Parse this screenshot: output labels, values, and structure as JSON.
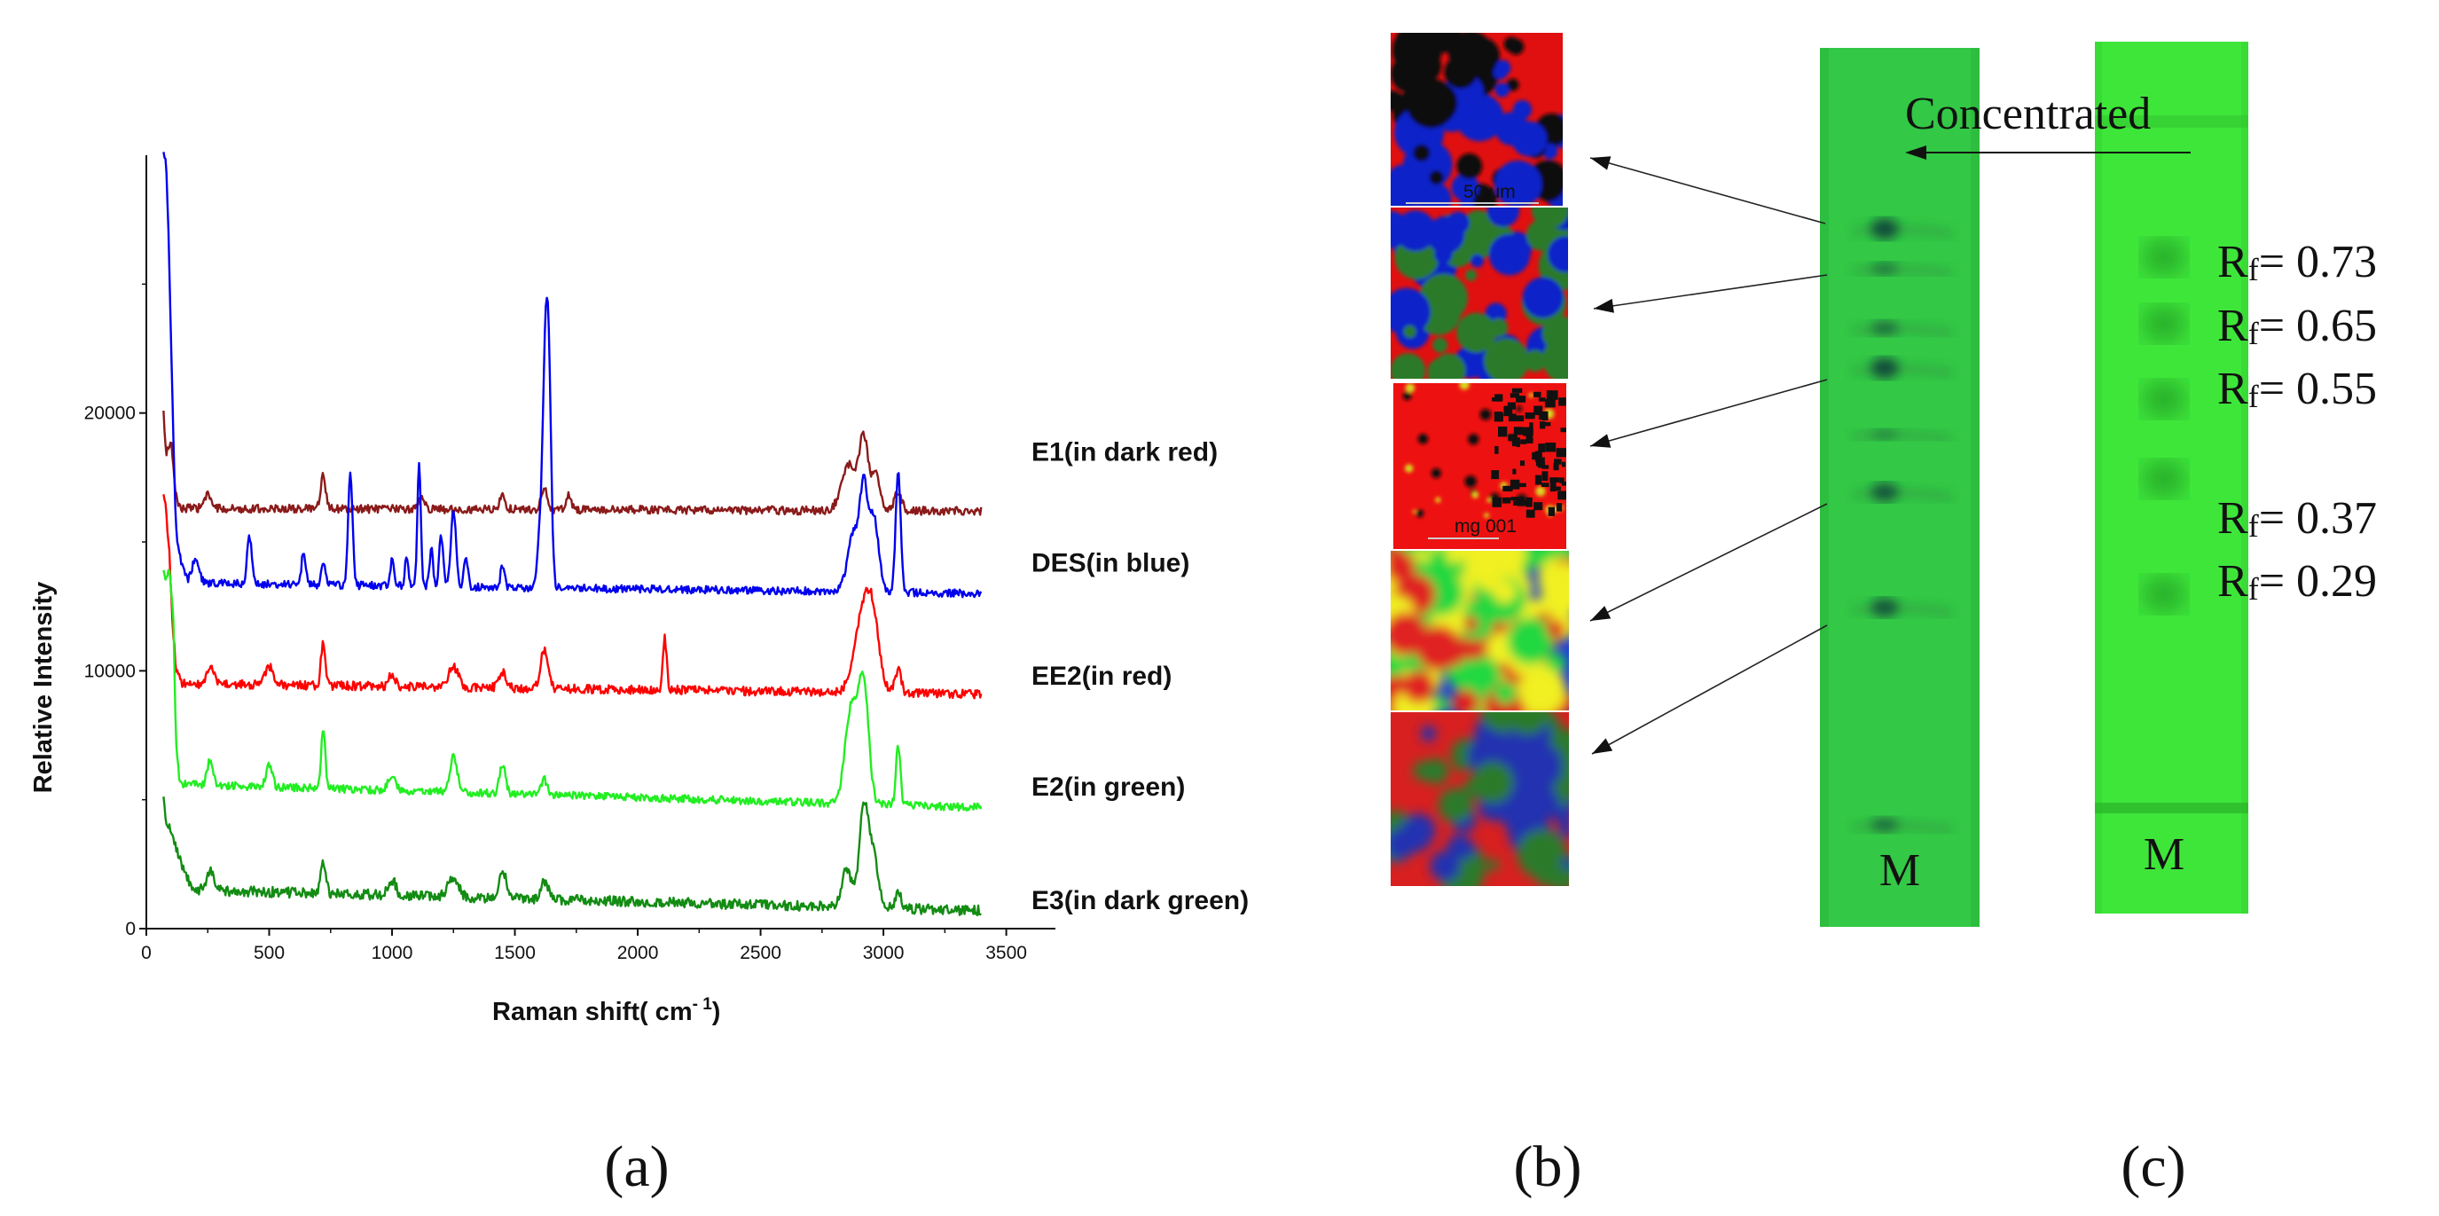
{
  "chart_data": [
    {
      "type": "line",
      "panel_label": "(a)",
      "xlabel": "Raman shift( cm⁻¹)",
      "xlabel_main": "Raman shift(  cm",
      "xlabel_sup": "- 1",
      "xlabel_close": ")",
      "ylabel": "Relative Intensity",
      "xlim": [
        0,
        3700
      ],
      "ylim": [
        0,
        30000
      ],
      "xticks": [
        "0",
        "500",
        "1000",
        "1500",
        "2000",
        "2500",
        "3000",
        "3500"
      ],
      "xtick_values": [
        0,
        500,
        1000,
        1500,
        2000,
        2500,
        3000,
        3500
      ],
      "yticks": [
        "0",
        "10000",
        "20000"
      ],
      "ytick_values": [
        0,
        10000,
        20000
      ],
      "grid": false,
      "series": [
        {
          "name": "E1(in dark red)",
          "color": "#8b1a1a",
          "label_at": 18500,
          "baseline": 16200,
          "noise": 160,
          "points": [
            [
              70,
              20000
            ],
            [
              80,
              18400
            ],
            [
              100,
              18900
            ],
            [
              120,
              16800
            ],
            [
              140,
              16300
            ],
            [
              3400,
              16200
            ]
          ],
          "peaks": [
            [
              250,
              500,
              15
            ],
            [
              720,
              1300,
              10
            ],
            [
              1120,
              500,
              12
            ],
            [
              1450,
              500,
              12
            ],
            [
              1620,
              800,
              12
            ],
            [
              1720,
              600,
              10
            ],
            [
              2860,
              1800,
              30
            ],
            [
              2920,
              2700,
              18
            ],
            [
              2970,
              1400,
              18
            ],
            [
              3060,
              700,
              15
            ]
          ]
        },
        {
          "name": "DES(in blue)",
          "color": "#0000ee",
          "label_at": 14200,
          "baseline": 13000,
          "noise": 150,
          "points": [
            [
              70,
              30000
            ],
            [
              80,
              29900
            ],
            [
              90,
              27000
            ],
            [
              105,
              21000
            ],
            [
              120,
              15500
            ],
            [
              140,
              14300
            ],
            [
              170,
              13400
            ],
            [
              3400,
              13000
            ]
          ],
          "peaks": [
            [
              200,
              900,
              15
            ],
            [
              420,
              1800,
              10
            ],
            [
              640,
              1300,
              8
            ],
            [
              720,
              900,
              8
            ],
            [
              830,
              4300,
              9
            ],
            [
              1000,
              1000,
              7
            ],
            [
              1060,
              1200,
              7
            ],
            [
              1110,
              4900,
              7
            ],
            [
              1160,
              1400,
              7
            ],
            [
              1200,
              2000,
              8
            ],
            [
              1250,
              3000,
              10
            ],
            [
              1300,
              1200,
              8
            ],
            [
              1450,
              900,
              8
            ],
            [
              1600,
              1500,
              10
            ],
            [
              1625,
              9000,
              12
            ],
            [
              1640,
              5000,
              10
            ],
            [
              2880,
              2300,
              25
            ],
            [
              2920,
              3400,
              15
            ],
            [
              2960,
              2900,
              20
            ],
            [
              3060,
              4700,
              10
            ]
          ]
        },
        {
          "name": "EE2(in red)",
          "color": "#ff0000",
          "label_at": 9800,
          "baseline": 9100,
          "noise": 170,
          "points": [
            [
              70,
              17000
            ],
            [
              80,
              16200
            ],
            [
              95,
              14500
            ],
            [
              105,
              12000
            ],
            [
              120,
              10200
            ],
            [
              140,
              9500
            ],
            [
              3400,
              9100
            ]
          ],
          "peaks": [
            [
              260,
              600,
              15
            ],
            [
              500,
              700,
              15
            ],
            [
              720,
              1700,
              9
            ],
            [
              1000,
              500,
              12
            ],
            [
              1250,
              800,
              20
            ],
            [
              1450,
              600,
              15
            ],
            [
              1620,
              1500,
              15
            ],
            [
              2110,
              2000,
              8
            ],
            [
              2920,
              3200,
              35
            ],
            [
              2960,
              1800,
              25
            ],
            [
              3060,
              900,
              12
            ]
          ]
        },
        {
          "name": "E2(in green)",
          "color": "#22ee22",
          "label_at": 5500,
          "baseline": 4800,
          "noise": 150,
          "points": [
            [
              70,
              14000
            ],
            [
              80,
              13400
            ],
            [
              95,
              14000
            ],
            [
              110,
              12000
            ],
            [
              120,
              7500
            ],
            [
              135,
              5600
            ],
            [
              3400,
              4700
            ]
          ],
          "peaks": [
            [
              260,
              1000,
              12
            ],
            [
              500,
              900,
              12
            ],
            [
              720,
              2400,
              8
            ],
            [
              1000,
              600,
              15
            ],
            [
              1250,
              1400,
              15
            ],
            [
              1450,
              1100,
              12
            ],
            [
              1620,
              600,
              12
            ],
            [
              2870,
              3800,
              25
            ],
            [
              2920,
              4500,
              20
            ],
            [
              3060,
              2300,
              9
            ]
          ]
        },
        {
          "name": "E3(in dark green)",
          "color": "#138c13",
          "label_at": 1100,
          "baseline": 800,
          "noise": 200,
          "points": [
            [
              70,
              5200
            ],
            [
              80,
              4200
            ],
            [
              110,
              3500
            ],
            [
              160,
              2000
            ],
            [
              200,
              1500
            ],
            [
              3400,
              700
            ]
          ],
          "peaks": [
            [
              260,
              700,
              15
            ],
            [
              720,
              1300,
              10
            ],
            [
              1000,
              600,
              15
            ],
            [
              1250,
              800,
              20
            ],
            [
              1450,
              1100,
              15
            ],
            [
              1620,
              700,
              15
            ],
            [
              2850,
              1500,
              20
            ],
            [
              2920,
              3900,
              18
            ],
            [
              2960,
              2000,
              20
            ],
            [
              3060,
              600,
              12
            ]
          ]
        }
      ]
    },
    {
      "type": "image_panels",
      "panel_label": "(b)",
      "panels": [
        {
          "kind": "raman_map",
          "caption": "50 μm",
          "colors": [
            "#e01010",
            "#1020c8",
            "#111111"
          ]
        },
        {
          "kind": "raman_map",
          "caption": "",
          "colors": [
            "#e01010",
            "#1020c8",
            "#2a7a2a"
          ]
        },
        {
          "kind": "raman_map",
          "caption": "mg 001",
          "colors": [
            "#ee1111",
            "#111111",
            "#d8d820"
          ]
        },
        {
          "kind": "heat_map",
          "caption": "",
          "colors": [
            "#1f3fd8",
            "#20d840",
            "#f0f020",
            "#e02020"
          ]
        },
        {
          "kind": "raman_map",
          "caption": "",
          "colors": [
            "#d82020",
            "#2c7a2c",
            "#2030b0"
          ]
        }
      ]
    },
    {
      "type": "tlc_plate",
      "panel_label": "(c)",
      "annotation": "Concentrated",
      "lane_label_left": "M",
      "lane_label_right": "M",
      "rf_prefix": "R",
      "rf_sub": "f",
      "rf_values": [
        {
          "text": "= 0.73",
          "value": 0.73
        },
        {
          "text": "= 0.65",
          "value": 0.65
        },
        {
          "text": "= 0.55",
          "value": 0.55
        },
        {
          "text": "= 0.37",
          "value": 0.37
        },
        {
          "text": "= 0.29",
          "value": 0.29
        }
      ]
    }
  ]
}
